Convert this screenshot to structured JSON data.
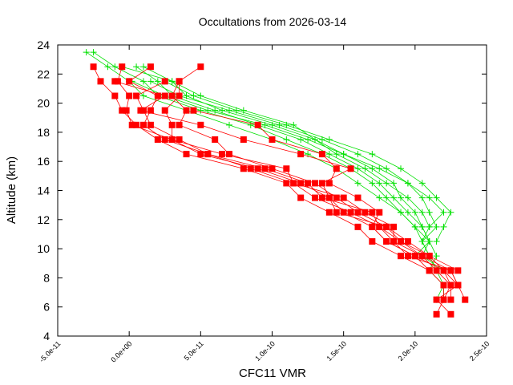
{
  "chart_data": {
    "type": "line",
    "title": "Occultations from 2026-03-14",
    "xlabel": "CFC11 VMR",
    "ylabel": "Altitude (km)",
    "xlim": [
      -5e-11,
      2.5e-10
    ],
    "ylim": [
      4,
      24
    ],
    "xticks": [
      "-5.0e-11",
      "0.0e+00",
      "5.0e-11",
      "1.0e-10",
      "1.5e-10",
      "2.0e-10",
      "2.5e-10"
    ],
    "yticks": [
      "4",
      "6",
      "8",
      "10",
      "12",
      "14",
      "16",
      "18",
      "20",
      "22",
      "24"
    ],
    "grid": false,
    "legend": "none",
    "colors": {
      "red_series": "#ff0000",
      "green_series": "#00e000"
    },
    "markers": {
      "red_series": "square",
      "green_series": "plus"
    },
    "red_altitudes": [
      22.5,
      21.5,
      20.5,
      19.5,
      18.5,
      17.5,
      16.5,
      15.5,
      14.5,
      13.5,
      12.5,
      11.5,
      10.5,
      9.5,
      8.5,
      7.5,
      6.5,
      5.5
    ],
    "red_profiles": [
      [
        -2.5e-11,
        -2e-11,
        -1e-11,
        -5e-12,
        5e-12,
        2e-11,
        4e-11,
        8e-11,
        1.1e-10,
        1.2e-10,
        1.4e-10,
        1.6e-10,
        1.7e-10,
        1.9e-10,
        2.1e-10,
        2.2e-10,
        2.2e-10,
        2.15e-10
      ],
      [
        -5e-12,
        -8e-12,
        0,
        -2e-12,
        2e-12,
        3e-11,
        5e-11,
        9e-11,
        1.2e-10,
        1.4e-10,
        1.5e-10,
        1.7e-10,
        1.8e-10,
        2e-10,
        2.2e-10,
        2.3e-10,
        2.15e-10,
        2.25e-10
      ],
      [
        1.5e-11,
        0,
        2e-11,
        1.5e-11,
        1e-11,
        2.5e-11,
        5.5e-11,
        8.5e-11,
        1.15e-10,
        1.3e-10,
        1.55e-10,
        1.75e-10,
        1.85e-10,
        2.05e-10,
        2.25e-10,
        2.3e-10,
        2.35e-10,
        null
      ],
      [
        5e-11,
        3.5e-11,
        3e-11,
        4e-11,
        3.5e-11,
        6e-11,
        7e-11,
        1e-10,
        1.3e-10,
        1.45e-10,
        1.6e-10,
        1.8e-10,
        1.9e-10,
        2.1e-10,
        2.2e-10,
        2.25e-10,
        2.25e-10,
        null
      ],
      [
        null,
        2.5e-11,
        5e-12,
        1e-11,
        1.5e-11,
        3.5e-11,
        5.5e-11,
        9.5e-11,
        1.25e-10,
        1.35e-10,
        1.7e-10,
        1.75e-10,
        1.9e-10,
        2.05e-10,
        2.15e-10,
        2.25e-10,
        2.2e-10,
        null
      ],
      [
        null,
        3.5e-11,
        3.5e-11,
        2.5e-11,
        3e-11,
        3e-11,
        6.5e-11,
        1.1e-10,
        1.15e-10,
        1.5e-10,
        1.65e-10,
        1.85e-10,
        1.85e-10,
        1.95e-10,
        2.25e-10,
        2.3e-10,
        null,
        null
      ],
      [
        null,
        -1e-11,
        2.5e-11,
        8e-12,
        5e-11,
        8e-11,
        1.2e-10,
        1.55e-10,
        1.35e-10,
        1.4e-10,
        1.45e-10,
        1.8e-10,
        1.95e-10,
        2.1e-10,
        2.3e-10,
        null,
        null,
        null
      ],
      [
        null,
        null,
        null,
        4.5e-11,
        9e-11,
        1e-10,
        1.35e-10,
        1.45e-10,
        1.4e-10,
        1.6e-10,
        1.75e-10,
        1.7e-10,
        1.8e-10,
        2e-10,
        2.1e-10,
        null,
        null,
        null
      ]
    ],
    "green_altitudes": [
      23.5,
      22.5,
      21.5,
      20.5,
      19.5,
      18.5,
      17.5,
      16.5,
      15.5,
      14.5,
      13.5,
      12.5,
      11.5,
      10.5,
      9.5,
      8.5,
      7.5,
      6.5
    ],
    "green_profiles": [
      [
        -3e-11,
        -1.5e-11,
        0,
        1e-11,
        4e-11,
        7e-11,
        1e-10,
        1.25e-10,
        1.45e-10,
        1.6e-10,
        1.75e-10,
        1.9e-10,
        2e-10,
        2.05e-10,
        2.1e-10,
        2.15e-10,
        2.2e-10,
        2.2e-10
      ],
      [
        -2.5e-11,
        -1e-11,
        1e-11,
        2e-11,
        5e-11,
        8.5e-11,
        1.1e-10,
        1.35e-10,
        1.55e-10,
        1.7e-10,
        1.8e-10,
        1.9e-10,
        2e-10,
        2.1e-10,
        2.15e-10,
        2.1e-10,
        2.2e-10,
        2.15e-10
      ],
      [
        null,
        5e-12,
        2e-11,
        3e-11,
        6e-11,
        9e-11,
        1.2e-10,
        1.4e-10,
        1.6e-10,
        1.75e-10,
        1.85e-10,
        1.95e-10,
        2.05e-10,
        2.1e-10,
        2.05e-10,
        2.2e-10,
        null,
        null
      ],
      [
        null,
        -5e-12,
        3e-11,
        4e-11,
        6.5e-11,
        1e-10,
        1.3e-10,
        1.5e-10,
        1.7e-10,
        1.85e-10,
        1.9e-10,
        2e-10,
        2.05e-10,
        2.1e-10,
        2e-10,
        null,
        null,
        null
      ],
      [
        null,
        null,
        1.5e-11,
        3.5e-11,
        7e-11,
        1.05e-10,
        1.35e-10,
        1.6e-10,
        1.8e-10,
        1.95e-10,
        2.1e-10,
        2.2e-10,
        2.1e-10,
        2.05e-10,
        2.1e-10,
        null,
        null,
        null
      ],
      [
        null,
        null,
        2.5e-11,
        4.5e-11,
        7.5e-11,
        1.1e-10,
        1.4e-10,
        1.7e-10,
        1.9e-10,
        2.05e-10,
        2.15e-10,
        2.25e-10,
        2.2e-10,
        2.15e-10,
        null,
        null,
        null,
        null
      ],
      [
        null,
        1e-11,
        3e-11,
        5e-11,
        8e-11,
        1.15e-10,
        1.3e-10,
        1.45e-10,
        1.65e-10,
        1.8e-10,
        1.95e-10,
        2.05e-10,
        2.1e-10,
        null,
        null,
        null,
        null,
        null
      ],
      [
        null,
        null,
        2e-12,
        2.5e-11,
        5.5e-11,
        9.5e-11,
        1.25e-10,
        1.5e-10,
        1.75e-10,
        1.95e-10,
        2.05e-10,
        2.1e-10,
        2.15e-10,
        2.05e-10,
        null,
        null,
        null,
        null
      ]
    ]
  }
}
